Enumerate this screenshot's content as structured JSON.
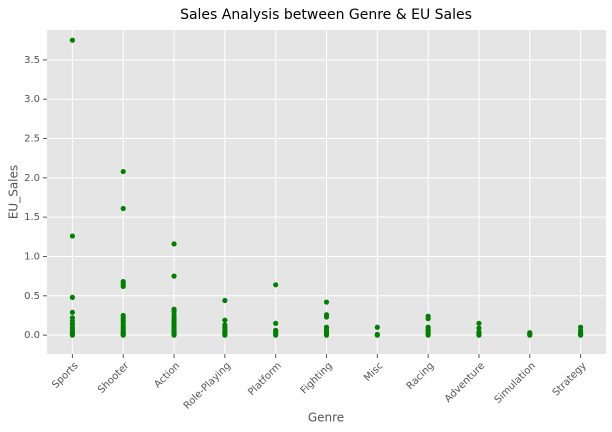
{
  "chart_data": {
    "type": "scatter",
    "title": "Sales Analysis between Genre & EU Sales",
    "x_label": "Genre",
    "y_label": "EU_Sales",
    "color": "#008000",
    "grid": true,
    "categories": [
      "Sports",
      "Shooter",
      "Action",
      "Role-Playing",
      "Platform",
      "Fighting",
      "Misc",
      "Racing",
      "Adventure",
      "Simulation",
      "Strategy"
    ],
    "ylim": [
      -0.24,
      3.88
    ],
    "yticks": [
      {
        "value": 0,
        "label": "0.0"
      },
      0.5,
      {
        "value": 1,
        "label": "1.0"
      },
      1.5,
      {
        "value": 2,
        "label": "2.0"
      },
      2.5,
      {
        "value": 3,
        "label": "3.0"
      },
      3.5
    ],
    "x": [
      "Sports",
      "Sports",
      "Sports",
      "Sports",
      "Sports",
      "Sports",
      "Sports",
      "Sports",
      "Sports",
      "Sports",
      "Sports",
      "Sports",
      "Shooter",
      "Shooter",
      "Shooter",
      "Shooter",
      "Shooter",
      "Shooter",
      "Shooter",
      "Shooter",
      "Shooter",
      "Shooter",
      "Shooter",
      "Shooter",
      "Shooter",
      "Shooter",
      "Shooter",
      "Shooter",
      "Action",
      "Action",
      "Action",
      "Action",
      "Action",
      "Action",
      "Action",
      "Action",
      "Action",
      "Action",
      "Action",
      "Action",
      "Action",
      "Action",
      "Action",
      "Role-Playing",
      "Role-Playing",
      "Role-Playing",
      "Role-Playing",
      "Role-Playing",
      "Role-Playing",
      "Role-Playing",
      "Role-Playing",
      "Role-Playing",
      "Platform",
      "Platform",
      "Platform",
      "Platform",
      "Platform",
      "Platform",
      "Fighting",
      "Fighting",
      "Fighting",
      "Fighting",
      "Fighting",
      "Fighting",
      "Fighting",
      "Fighting",
      "Misc",
      "Misc",
      "Misc",
      "Racing",
      "Racing",
      "Racing",
      "Racing",
      "Racing",
      "Racing",
      "Racing",
      "Adventure",
      "Adventure",
      "Adventure",
      "Adventure",
      "Adventure",
      "Simulation",
      "Simulation",
      "Simulation",
      "Strategy",
      "Strategy",
      "Strategy",
      "Strategy",
      "Strategy"
    ],
    "values": [
      3.75,
      1.26,
      0.48,
      0.29,
      0.22,
      0.18,
      0.14,
      0.1,
      0.07,
      0.04,
      0.02,
      0,
      2.08,
      1.61,
      0.68,
      0.65,
      0.62,
      0.25,
      0.22,
      0.19,
      0.16,
      0.13,
      0.1,
      0.08,
      0.05,
      0.03,
      0.01,
      0,
      1.16,
      0.75,
      0.33,
      0.3,
      0.26,
      0.22,
      0.19,
      0.16,
      0.13,
      0.1,
      0.07,
      0.05,
      0.03,
      0.01,
      0,
      0.44,
      0.19,
      0.13,
      0.1,
      0.07,
      0.05,
      0.03,
      0.01,
      0,
      0.64,
      0.15,
      0.06,
      0.04,
      0.02,
      0,
      0.42,
      0.26,
      0.23,
      0.1,
      0.07,
      0.04,
      0.02,
      0,
      0.1,
      0.01,
      0,
      0.24,
      0.21,
      0.1,
      0.07,
      0.05,
      0.02,
      0,
      0.15,
      0.09,
      0.04,
      0.01,
      0,
      0.03,
      0.01,
      0,
      0.1,
      0.06,
      0.03,
      0.01,
      0
    ]
  }
}
